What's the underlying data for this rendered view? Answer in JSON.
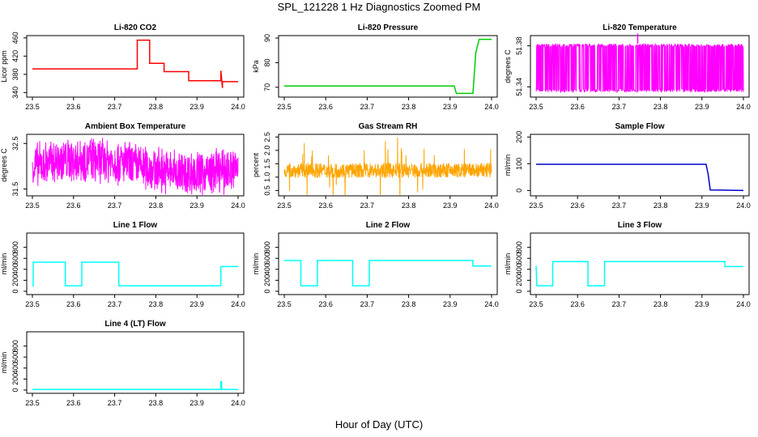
{
  "figure": {
    "title": "SPL_121228  1 Hz Diagnostics Zoomed PM",
    "xlabel": "Hour of Day (UTC)"
  },
  "chart_data": [
    {
      "type": "line",
      "title": "Li-820 CO2",
      "ylabel": "Licor ppm",
      "color": "#ff0000",
      "xlim": [
        23.5,
        24.0
      ],
      "ylim": [
        330,
        465
      ],
      "xticks": [
        23.5,
        23.6,
        23.7,
        23.8,
        23.9,
        24.0
      ],
      "xtick_labels": [
        "23.5",
        "23.6",
        "23.7",
        "23.8",
        "23.9",
        "24.0"
      ],
      "yticks": [
        340,
        380,
        420,
        460
      ],
      "ytick_labels": [
        "340",
        "380",
        "420",
        "460"
      ],
      "series": [
        {
          "x": [
            23.5,
            23.755,
            23.755,
            23.785,
            23.785,
            23.82,
            23.82,
            23.85,
            23.85,
            23.88,
            23.88,
            23.958,
            23.958,
            23.962,
            23.962,
            24.0
          ],
          "y": [
            392,
            392,
            455,
            455,
            404,
            404,
            386,
            386,
            386,
            386,
            366,
            366,
            388,
            350,
            364,
            364
          ]
        }
      ]
    },
    {
      "type": "line",
      "title": "Li-820 Pressure",
      "ylabel": "kPa",
      "color": "#00cc00",
      "xlim": [
        23.5,
        24.0
      ],
      "ylim": [
        66,
        91
      ],
      "xticks": [
        23.5,
        23.6,
        23.7,
        23.8,
        23.9,
        24.0
      ],
      "xtick_labels": [
        "23.5",
        "23.6",
        "23.7",
        "23.8",
        "23.9",
        "24.0"
      ],
      "yticks": [
        70,
        80,
        90
      ],
      "ytick_labels": [
        "70",
        "80",
        "90"
      ],
      "series": [
        {
          "x": [
            23.5,
            23.91,
            23.915,
            23.955,
            23.962,
            23.97,
            24.0
          ],
          "y": [
            70.5,
            70.5,
            67.5,
            67.5,
            84,
            89.5,
            89.5
          ]
        }
      ]
    },
    {
      "type": "line",
      "title": "Li-820 Temperature",
      "ylabel": "degrees C",
      "color": "#ff00ff",
      "xlim": [
        23.5,
        24.0
      ],
      "ylim": [
        51.33,
        51.39
      ],
      "xticks": [
        23.5,
        23.6,
        23.7,
        23.8,
        23.9,
        24.0
      ],
      "xtick_labels": [
        "23.5",
        "23.6",
        "23.7",
        "23.8",
        "23.9",
        "24.0"
      ],
      "yticks": [
        51.34,
        51.38
      ],
      "ytick_labels": [
        "51.34",
        "51.38"
      ],
      "noise": {
        "low": 51.335,
        "high": 51.382,
        "spike_x": 23.745,
        "spike_y": 51.392,
        "style": "bimodal"
      }
    },
    {
      "type": "line",
      "title": "Ambient Box Temperature",
      "ylabel": "degrees C",
      "color": "#ff00ff",
      "xlim": [
        23.5,
        24.0
      ],
      "ylim": [
        31.35,
        32.7
      ],
      "xticks": [
        23.5,
        23.6,
        23.7,
        23.8,
        23.9,
        24.0
      ],
      "xtick_labels": [
        "23.5",
        "23.6",
        "23.7",
        "23.8",
        "23.9",
        "24.0"
      ],
      "yticks": [
        31.5,
        32.5
      ],
      "ytick_labels": [
        "31.5",
        "32.5"
      ],
      "noise": {
        "center": 32.0,
        "amplitude": 0.55,
        "style": "dense"
      }
    },
    {
      "type": "line",
      "title": "Gas Stream RH",
      "ylabel": "percent",
      "color": "#ffa500",
      "xlim": [
        23.5,
        24.0
      ],
      "ylim": [
        0.3,
        2.6
      ],
      "xticks": [
        23.5,
        23.6,
        23.7,
        23.8,
        23.9,
        24.0
      ],
      "xtick_labels": [
        "23.5",
        "23.6",
        "23.7",
        "23.8",
        "23.9",
        "24.0"
      ],
      "yticks": [
        0.5,
        1.0,
        1.5,
        2.0,
        2.5
      ],
      "ytick_labels": [
        "0.5",
        "1.0",
        "1.5",
        "2.0",
        "2.5"
      ],
      "noise": {
        "center": 1.25,
        "amplitude": 0.4,
        "style": "spiky"
      }
    },
    {
      "type": "line",
      "title": "Sample Flow",
      "ylabel": "ml/min",
      "color": "#0000cc",
      "xlim": [
        23.5,
        24.0
      ],
      "ylim": [
        -20,
        210
      ],
      "xticks": [
        23.5,
        23.6,
        23.7,
        23.8,
        23.9,
        24.0
      ],
      "xtick_labels": [
        "23.5",
        "23.6",
        "23.7",
        "23.8",
        "23.9",
        "24.0"
      ],
      "yticks": [
        0,
        100,
        200
      ],
      "ytick_labels": [
        "0",
        "100",
        "200"
      ],
      "series": [
        {
          "x": [
            23.5,
            23.91,
            23.915,
            23.92,
            24.0
          ],
          "y": [
            98,
            98,
            60,
            2,
            0
          ]
        }
      ]
    },
    {
      "type": "line",
      "title": "Line 1 Flow",
      "ylabel": "ml/min",
      "color": "#00ffff",
      "xlim": [
        23.5,
        24.0
      ],
      "ylim": [
        -60,
        1060
      ],
      "xticks": [
        23.5,
        23.6,
        23.7,
        23.8,
        23.9,
        24.0
      ],
      "xtick_labels": [
        "23.5",
        "23.6",
        "23.7",
        "23.8",
        "23.9",
        "24.0"
      ],
      "yticks": [
        0,
        200,
        400,
        600,
        800
      ],
      "ytick_labels": [
        "0",
        "200",
        "400",
        "600",
        "800"
      ],
      "series": [
        {
          "x": [
            23.5,
            23.502,
            23.502,
            23.58,
            23.58,
            23.62,
            23.62,
            23.71,
            23.71,
            23.958,
            23.958,
            24.0
          ],
          "y": [
            100,
            100,
            530,
            530,
            100,
            100,
            530,
            530,
            100,
            100,
            450,
            450
          ]
        }
      ]
    },
    {
      "type": "line",
      "title": "Line 2 Flow",
      "ylabel": "ml/min",
      "color": "#00ffff",
      "xlim": [
        23.5,
        24.0
      ],
      "ylim": [
        -60,
        1060
      ],
      "xticks": [
        23.5,
        23.6,
        23.7,
        23.8,
        23.9,
        24.0
      ],
      "xtick_labels": [
        "23.5",
        "23.6",
        "23.7",
        "23.8",
        "23.9",
        "24.0"
      ],
      "yticks": [
        0,
        200,
        400,
        600,
        800
      ],
      "ytick_labels": [
        "0",
        "200",
        "400",
        "600",
        "800"
      ],
      "series": [
        {
          "x": [
            23.5,
            23.54,
            23.54,
            23.58,
            23.58,
            23.665,
            23.665,
            23.705,
            23.705,
            23.955,
            23.955,
            24.0
          ],
          "y": [
            560,
            560,
            100,
            100,
            560,
            560,
            100,
            100,
            560,
            560,
            460,
            460
          ]
        }
      ]
    },
    {
      "type": "line",
      "title": "Line 3 Flow",
      "ylabel": "ml/min",
      "color": "#00ffff",
      "xlim": [
        23.5,
        24.0
      ],
      "ylim": [
        -60,
        1060
      ],
      "xticks": [
        23.5,
        23.6,
        23.7,
        23.8,
        23.9,
        24.0
      ],
      "xtick_labels": [
        "23.5",
        "23.6",
        "23.7",
        "23.8",
        "23.9",
        "24.0"
      ],
      "yticks": [
        0,
        200,
        400,
        600,
        800
      ],
      "ytick_labels": [
        "0",
        "200",
        "400",
        "600",
        "800"
      ],
      "series": [
        {
          "x": [
            23.5,
            23.502,
            23.502,
            23.54,
            23.54,
            23.625,
            23.625,
            23.665,
            23.665,
            23.955,
            23.955,
            24.0
          ],
          "y": [
            460,
            100,
            100,
            100,
            540,
            540,
            100,
            100,
            540,
            540,
            450,
            450
          ]
        }
      ]
    },
    {
      "type": "line",
      "title": "Line 4 (LT) Flow",
      "ylabel": "ml/min",
      "color": "#00ffff",
      "xlim": [
        23.5,
        24.0
      ],
      "ylim": [
        -60,
        1060
      ],
      "xticks": [
        23.5,
        23.6,
        23.7,
        23.8,
        23.9,
        24.0
      ],
      "xtick_labels": [
        "23.5",
        "23.6",
        "23.7",
        "23.8",
        "23.9",
        "24.0"
      ],
      "yticks": [
        0,
        200,
        400,
        600,
        800
      ],
      "ytick_labels": [
        "0",
        "200",
        "400",
        "600",
        "800"
      ],
      "series": [
        {
          "x": [
            23.5,
            23.958,
            23.958,
            23.96,
            23.96,
            24.0
          ],
          "y": [
            10,
            10,
            150,
            150,
            10,
            10
          ]
        }
      ]
    }
  ]
}
